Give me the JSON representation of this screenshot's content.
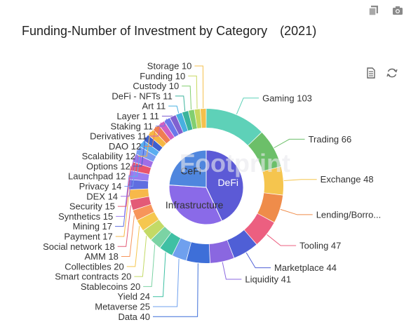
{
  "title": "Funding-Number of Investment by Category　(2021)",
  "icons": {
    "top": [
      "copy-icon",
      "camera-icon"
    ],
    "toolbox": [
      "data-view-icon",
      "refresh-icon"
    ]
  },
  "chart_data": [
    {
      "type": "pie",
      "variant": "ring",
      "categories": [
        "Gaming",
        "Trading",
        "Exchange",
        "Lending/Borro...",
        "Tooling",
        "Marketplace",
        "Liquidity",
        "Data",
        "Metaverse",
        "Yield",
        "Stablecoins",
        "Smart contracts",
        "Collectibles",
        "AMM",
        "Social network",
        "Payment",
        "Mining",
        "Synthetics",
        "Security",
        "DEX",
        "Privacy",
        "Launchpad",
        "Options",
        "Scalability",
        "DAO",
        "Derivatives",
        "Staking",
        "Layer 1",
        "Art",
        "DeFi - NFTs",
        "Custody",
        "Funding",
        "Storage"
      ],
      "values": [
        103,
        66,
        48,
        48,
        47,
        44,
        41,
        40,
        25,
        24,
        20,
        20,
        20,
        18,
        18,
        17,
        17,
        15,
        15,
        14,
        14,
        12,
        12,
        12,
        12,
        11,
        11,
        11,
        11,
        11,
        10,
        10,
        10
      ],
      "labels": [
        "Gaming 103",
        "Trading 66",
        "Exchange 48",
        "Lending/Borro...",
        "Tooling 47",
        "Marketplace 44",
        "Liquidity 41",
        "Data 40",
        "Metaverse 25",
        "Yield 24",
        "Stablecoins 20",
        "Smart contracts 20",
        "Collectibles 20",
        "AMM 18",
        "Social network 18",
        "Payment 17",
        "Mining 17",
        "Synthetics 15",
        "Security 15",
        "DEX 14",
        "Privacy 14",
        "Launchpad 12",
        "Options 12",
        "Scalability 12",
        "DAO 12",
        "Derivatives 11",
        "Staking 11",
        "Layer 1 11",
        "Art 11",
        "DeFi - NFTs 11",
        "Custody 10",
        "Funding 10",
        "Storage 10"
      ],
      "colors": [
        "#5ed1b8",
        "#6cbf69",
        "#f5c54e",
        "#ef8c4a",
        "#ec5f80",
        "#4f5fd6",
        "#8a67e0",
        "#3e6fd8",
        "#6fa0ee",
        "#3fc0a4",
        "#7bd3a4",
        "#c3da66",
        "#f5c74f",
        "#f7955a",
        "#e35a77",
        "#f7b84a",
        "#5f6ee0",
        "#9a7df0",
        "#e9546c",
        "#a06ee6",
        "#7a9cf0",
        "#5aaef0",
        "#3e5fd0",
        "#f5b745",
        "#ef7d52",
        "#cf5fc2",
        "#6a78ea",
        "#8060d0",
        "#48b0e0",
        "#3bb49c",
        "#82cf70",
        "#c8d860",
        "#f5c04c"
      ]
    },
    {
      "type": "pie",
      "variant": "inner",
      "categories": [
        "DeFi",
        "Infrastructure",
        "CeFi"
      ],
      "values": [
        43,
        33,
        24
      ],
      "colors": [
        "#5c5ad6",
        "#8a6ae8",
        "#4f86de"
      ],
      "watermark": "Footprint"
    }
  ]
}
